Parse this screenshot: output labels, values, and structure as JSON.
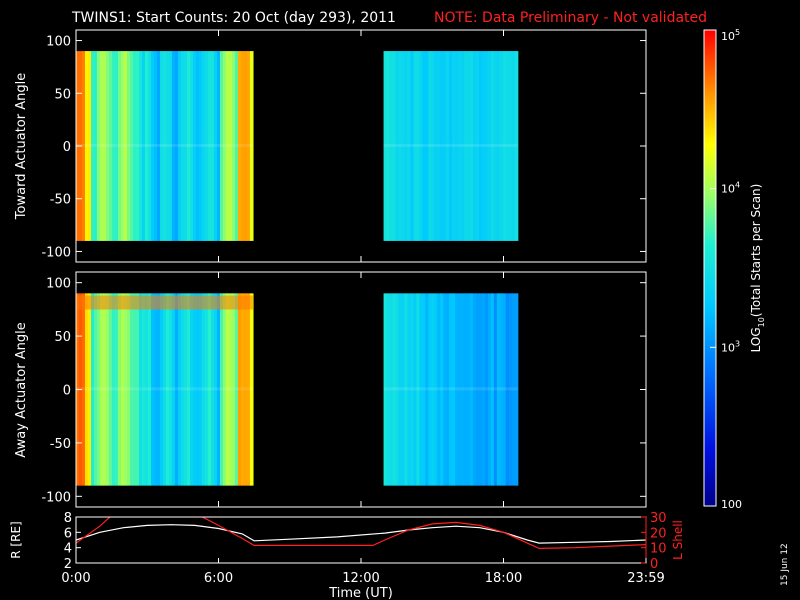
{
  "header": {
    "title": "TWINS1: Start Counts: 20 Oct (day 293), 2011",
    "note": "NOTE: Data Preliminary - Not validated",
    "note_color": "#ff2020"
  },
  "side_label": "15 Jun 12",
  "chart_data": [
    {
      "type": "heatmap",
      "ylabel": "Toward Actuator Angle",
      "ylim": [
        -110,
        110
      ],
      "yticks": [
        -100,
        -50,
        0,
        50,
        100
      ],
      "xlim": [
        0,
        24
      ],
      "data_intervals_hours": [
        [
          0.0,
          7.45
        ],
        [
          12.95,
          18.6
        ]
      ],
      "angle_range": [
        -90,
        90
      ]
    },
    {
      "type": "heatmap",
      "ylabel": "Away Actuator Angle",
      "ylim": [
        -110,
        110
      ],
      "yticks": [
        -100,
        -50,
        0,
        50,
        100
      ],
      "xlim": [
        0,
        24
      ],
      "data_intervals_hours": [
        [
          0.0,
          7.45
        ],
        [
          12.95,
          18.6
        ]
      ],
      "angle_range": [
        -90,
        90
      ]
    },
    {
      "type": "line",
      "ylabel_left": "R [RE]",
      "ylabel_right": "L Shell",
      "ylim_left": [
        2,
        8
      ],
      "yticks_left": [
        2,
        4,
        6,
        8
      ],
      "ylim_right": [
        0,
        30
      ],
      "yticks_right": [
        0,
        10,
        20,
        30
      ],
      "xlim": [
        0,
        24
      ],
      "xticks": [
        "0:00",
        "6:00",
        "12:00",
        "18:00",
        "23:59"
      ],
      "xlabel": "Time (UT)",
      "series": [
        {
          "color": "#ffffff",
          "x": [
            0,
            1,
            2,
            3,
            4,
            5,
            6,
            7,
            7.5,
            9,
            11,
            13,
            14,
            15,
            16,
            17,
            18,
            19,
            19.5,
            21,
            22.5,
            24
          ],
          "y": [
            5.0,
            6.0,
            6.6,
            6.9,
            7.0,
            6.9,
            6.5,
            5.8,
            4.9,
            5.1,
            5.4,
            5.9,
            6.3,
            6.6,
            6.8,
            6.6,
            6.0,
            5.0,
            4.6,
            4.7,
            4.8,
            5.0
          ]
        },
        {
          "color": "#ff2020",
          "x": [
            0,
            1,
            1.5,
            5.2,
            6,
            7,
            7.5,
            12,
            12.5,
            13,
            14,
            15,
            16,
            17,
            18,
            19,
            19.5,
            21,
            22.5,
            24
          ],
          "y": [
            4.6,
            6.8,
            8.2,
            8.2,
            6.9,
            5.2,
            4.3,
            4.3,
            4.3,
            5.0,
            6.3,
            7.1,
            7.3,
            6.9,
            6.0,
            4.6,
            3.9,
            4.0,
            4.2,
            4.4
          ]
        }
      ]
    }
  ],
  "colorbar": {
    "label": "LOG10(Total Starts per Scan)",
    "label_main": "LOG",
    "label_sub": "10",
    "label_rest": "(Total Starts per Scan)",
    "ticks": [
      "10^5",
      "10^4",
      "10^3",
      "100"
    ],
    "tick_values": [
      100000,
      10000,
      1000,
      100
    ],
    "range": [
      100,
      100000
    ],
    "scale": "log"
  }
}
